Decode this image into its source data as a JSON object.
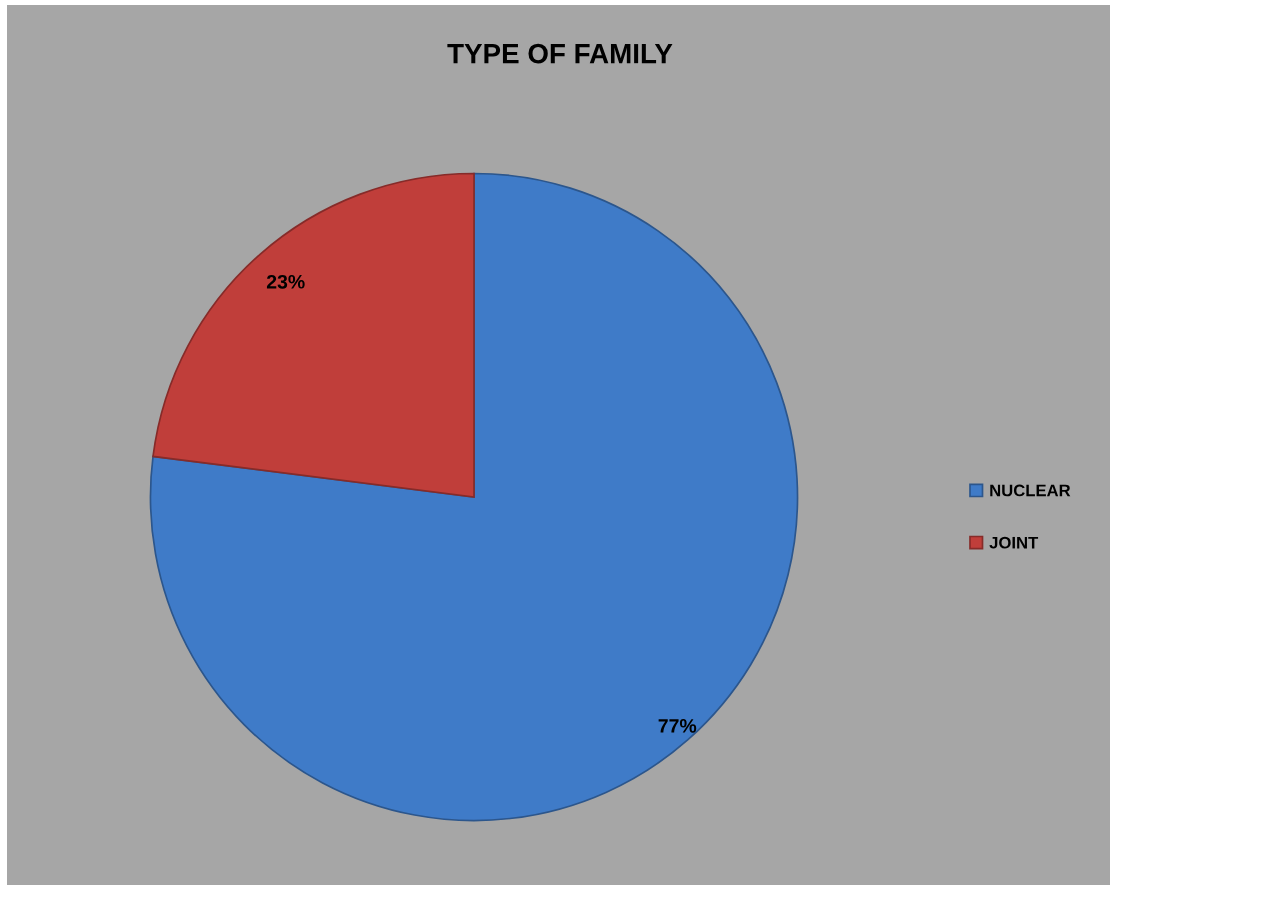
{
  "chart_data": {
    "type": "pie",
    "title": "TYPE OF FAMILY",
    "categories": [
      "NUCLEAR",
      "JOINT"
    ],
    "values": [
      77,
      23
    ],
    "colors": [
      "#3f7bc8",
      "#c03e3a"
    ],
    "value_labels": [
      "77%",
      "23%"
    ],
    "legend": "right"
  }
}
